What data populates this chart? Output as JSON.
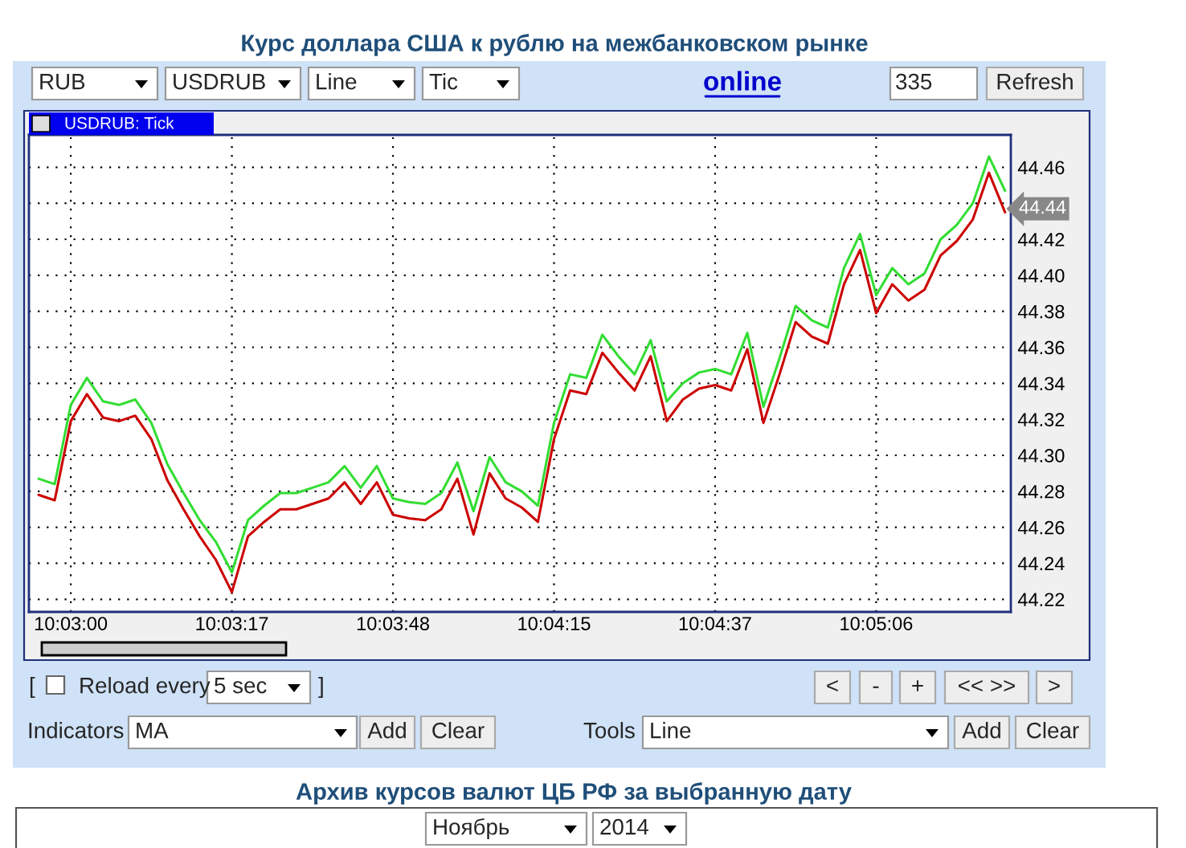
{
  "chart_data": {
    "type": "line",
    "title": "Курс доллара США к рублю на межбанковском рынке",
    "subtitle": "USDRUB: Tick",
    "categories": [
      null,
      null,
      "10:03:00",
      null,
      null,
      null,
      null,
      null,
      null,
      null,
      null,
      null,
      "10:03:17",
      null,
      null,
      null,
      null,
      null,
      null,
      null,
      null,
      null,
      "10:03:48",
      null,
      null,
      null,
      null,
      null,
      null,
      null,
      null,
      null,
      "10:04:15",
      null,
      null,
      null,
      null,
      null,
      null,
      null,
      null,
      null,
      "10:04:37",
      null,
      null,
      null,
      null,
      null,
      null,
      null,
      null,
      null,
      "10:05:06",
      null,
      null,
      null,
      null,
      null,
      null,
      null,
      null
    ],
    "series": [
      {
        "color": "#33dd33",
        "values": [
          44.287,
          44.284,
          44.328,
          44.343,
          44.33,
          44.328,
          44.331,
          44.318,
          44.295,
          44.279,
          44.264,
          44.252,
          44.235,
          44.264,
          44.272,
          44.279,
          44.279,
          44.282,
          44.285,
          44.294,
          44.282,
          44.294,
          44.276,
          44.274,
          44.273,
          44.279,
          44.296,
          44.269,
          44.299,
          44.285,
          44.28,
          44.272,
          44.318,
          44.345,
          44.343,
          44.367,
          44.355,
          44.345,
          44.364,
          44.33,
          44.34,
          44.346,
          44.348,
          44.345,
          44.368,
          44.327,
          44.354,
          44.383,
          44.375,
          44.371,
          44.404,
          44.423,
          44.389,
          44.404,
          44.395,
          44.401,
          44.42,
          44.428,
          44.44,
          44.466,
          44.447
        ]
      },
      {
        "color": "#cc0000",
        "values": [
          44.278,
          44.275,
          44.319,
          44.334,
          44.321,
          44.319,
          44.322,
          44.309,
          44.286,
          44.27,
          44.255,
          44.242,
          44.224,
          44.255,
          44.263,
          44.27,
          44.27,
          44.273,
          44.276,
          44.285,
          44.273,
          44.285,
          44.267,
          44.265,
          44.264,
          44.27,
          44.287,
          44.256,
          44.29,
          44.276,
          44.271,
          44.263,
          44.309,
          44.336,
          44.334,
          44.357,
          44.346,
          44.336,
          44.355,
          44.319,
          44.331,
          44.337,
          44.339,
          44.336,
          44.359,
          44.318,
          44.345,
          44.374,
          44.366,
          44.362,
          44.395,
          44.414,
          44.379,
          44.395,
          44.386,
          44.392,
          44.411,
          44.419,
          44.431,
          44.457,
          44.435
        ]
      }
    ],
    "ylim": [
      44.213,
      44.478
    ],
    "yticks": [
      44.22,
      44.24,
      44.26,
      44.28,
      {
        "value": 44.3,
        "label": "44.30"
      },
      44.32,
      44.34,
      44.36,
      44.38,
      {
        "value": 44.4,
        "label": "44.40"
      },
      44.42,
      {
        "value": 44.44,
        "label": null
      },
      44.46
    ],
    "grid": true,
    "annotations": [
      "44.44",
      "RUB",
      "USDRUB",
      "Line",
      "Tic",
      "online",
      "335",
      "Refresh",
      "Reload every",
      "5 sec",
      "<",
      "-",
      "+",
      "<< >>",
      ">",
      "Indicators",
      "MA",
      "Add",
      "Clear",
      "Tools",
      "Line",
      "Add",
      "Clear",
      "Архив курсов валют ЦБ РФ за выбранную дату",
      "Ноябрь",
      "2014",
      "[",
      "]"
    ]
  }
}
